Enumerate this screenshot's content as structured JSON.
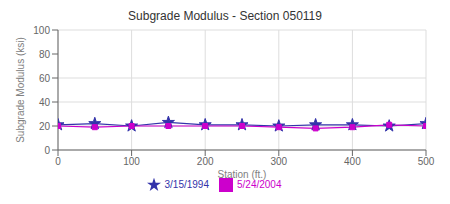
{
  "chart_data": {
    "type": "line",
    "title": "Subgrade Modulus - Section 050119",
    "xlabel": "Station (ft.)",
    "ylabel": "Subgrade Modulus (ksi)",
    "x": [
      0,
      50,
      100,
      150,
      200,
      250,
      300,
      350,
      400,
      450,
      500
    ],
    "series": [
      {
        "name": "3/15/1994",
        "color": "#3333AA",
        "marker": "star",
        "values": [
          21,
          22,
          20,
          23,
          21,
          21,
          20,
          21,
          21,
          20,
          22
        ]
      },
      {
        "name": "5/24/2004",
        "color": "#CC00CC",
        "marker": "square",
        "values": [
          20,
          19,
          20,
          20,
          20,
          20,
          19,
          18,
          19,
          21,
          20
        ]
      }
    ],
    "xlim": [
      0,
      500
    ],
    "ylim": [
      0,
      100
    ],
    "xticks": [
      0,
      100,
      200,
      300,
      400,
      500
    ],
    "yticks": [
      0,
      20,
      40,
      60,
      80,
      100
    ],
    "grid": true,
    "legend": "bottom"
  }
}
